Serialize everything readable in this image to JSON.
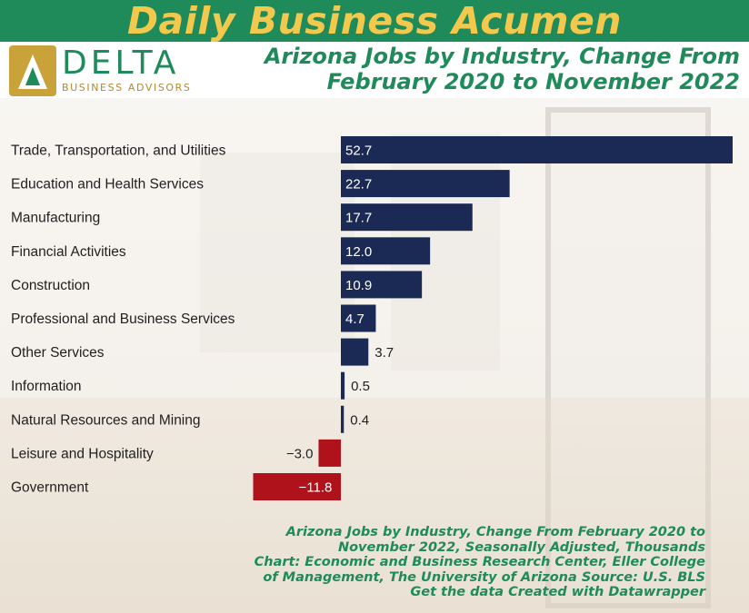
{
  "header": {
    "banner": "Daily Business Acumen"
  },
  "logo": {
    "word": "DELTA",
    "sub": "BUSINESS ADVISORS"
  },
  "title_lines": [
    "Arizona Jobs by Industry, Change From",
    "February 2020 to November 2022"
  ],
  "colors": {
    "positive": "#1b2a55",
    "negative": "#b0121c",
    "brand_green": "#1f8a5a",
    "brand_gold": "#f2c94c"
  },
  "chart_data": {
    "type": "bar",
    "orientation": "horizontal",
    "title": "Arizona Jobs by Industry, Change From February 2020 to November 2022",
    "categories": [
      "Trade, Transportation, and Utilities",
      "Education and Health Services",
      "Manufacturing",
      "Financial Activities",
      "Construction",
      "Professional and Business Services",
      "Other Services",
      "Information",
      "Natural Resources and Mining",
      "Leisure and Hospitality",
      "Government"
    ],
    "values": [
      52.7,
      22.7,
      17.7,
      12.0,
      10.9,
      4.7,
      3.7,
      0.5,
      0.4,
      -3.0,
      -11.8
    ],
    "value_labels": [
      "52.7",
      "22.7",
      "17.7",
      "12.0",
      "10.9",
      "4.7",
      "3.7",
      "0.5",
      "0.4",
      "−3.0",
      "−11.8"
    ],
    "xlim": [
      -11.8,
      52.7
    ],
    "grid": false,
    "legend": "none"
  },
  "footer_lines": [
    "Arizona Jobs by Industry, Change From February 2020 to",
    "November 2022, Seasonally Adjusted, Thousands",
    "Chart: Economic and Business Research Center, Eller College",
    "of Management, The University of Arizona  Source: U.S. BLS",
    "Get the data  Created with Datawrapper"
  ]
}
